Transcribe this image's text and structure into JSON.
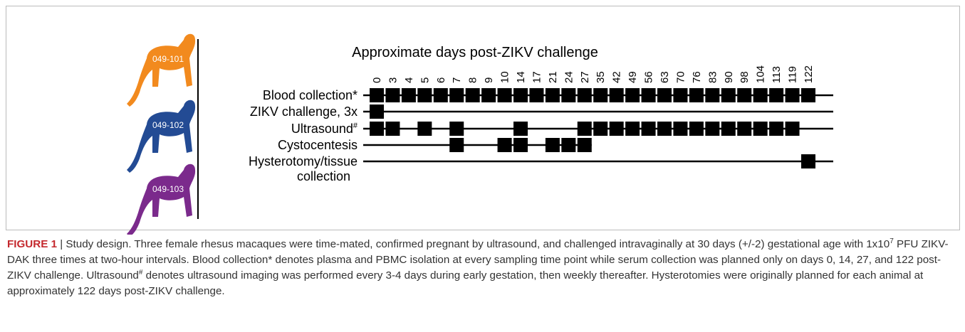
{
  "figure": {
    "animals": [
      {
        "label": "049-101",
        "color": "#f28a1e"
      },
      {
        "label": "049-102",
        "color": "#234b94"
      },
      {
        "label": "049-103",
        "color": "#7b2a8c"
      }
    ],
    "axis_title": "Approximate days post-ZIKV challenge",
    "days": [
      0,
      3,
      4,
      5,
      6,
      7,
      8,
      9,
      10,
      14,
      17,
      21,
      24,
      27,
      35,
      42,
      49,
      56,
      63,
      70,
      76,
      83,
      90,
      98,
      104,
      113,
      119,
      122
    ],
    "rows": [
      {
        "label": "Blood collection*",
        "days": [
          0,
          3,
          4,
          5,
          6,
          7,
          8,
          9,
          10,
          14,
          17,
          21,
          24,
          27,
          35,
          42,
          49,
          56,
          63,
          70,
          76,
          83,
          90,
          98,
          104,
          113,
          119,
          122
        ]
      },
      {
        "label": "ZIKV challenge, 3x",
        "days": [
          0
        ]
      },
      {
        "label": "Ultrasound",
        "sup": "#",
        "days": [
          0,
          3,
          5,
          7,
          14,
          27,
          35,
          42,
          49,
          56,
          63,
          70,
          76,
          83,
          90,
          98,
          104,
          113,
          119
        ]
      },
      {
        "label": "Cystocentesis",
        "days": [
          7,
          10,
          14,
          21,
          24,
          27
        ]
      },
      {
        "label": "Hysterotomy/tissue",
        "label2": "collection",
        "days": [
          122
        ]
      }
    ]
  },
  "caption": {
    "label": "FIGURE 1",
    "parts": [
      " | Study design. Three female rhesus macaques were time-mated, confirmed pregnant by ultrasound, and challenged intravaginally at 30 days (+/-2) gestational age with 1x10",
      "7",
      " PFU ZIKV-DAK three times at two-hour intervals. Blood collection* denotes plasma and PBMC isolation at every sampling time point while serum collection was planned only on days 0, 14, 27, and 122 post-ZIKV challenge. Ultrasound",
      "#",
      " denotes ultrasound imaging was performed every 3-4 days during early gestation, then weekly thereafter. Hysterotomies were originally planned for each animal at approximately 122 days post-ZIKV challenge."
    ]
  }
}
